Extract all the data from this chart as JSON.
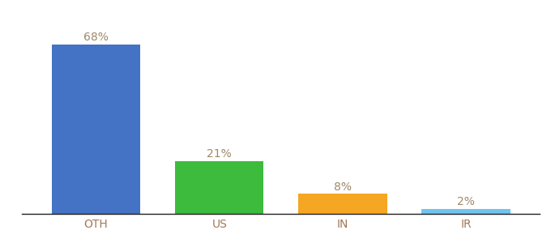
{
  "categories": [
    "OTH",
    "US",
    "IN",
    "IR"
  ],
  "values": [
    68,
    21,
    8,
    2
  ],
  "bar_colors": [
    "#4472c4",
    "#3dbb3d",
    "#f5a623",
    "#6ec6f0"
  ],
  "label_texts": [
    "68%",
    "21%",
    "8%",
    "2%"
  ],
  "label_color": "#a08868",
  "xlabel_color": "#a07858",
  "background_color": "#ffffff",
  "ylim": [
    0,
    76
  ],
  "bar_width": 0.72,
  "label_fontsize": 10,
  "xlabel_fontsize": 10,
  "figsize": [
    6.8,
    3.0
  ],
  "dpi": 100
}
